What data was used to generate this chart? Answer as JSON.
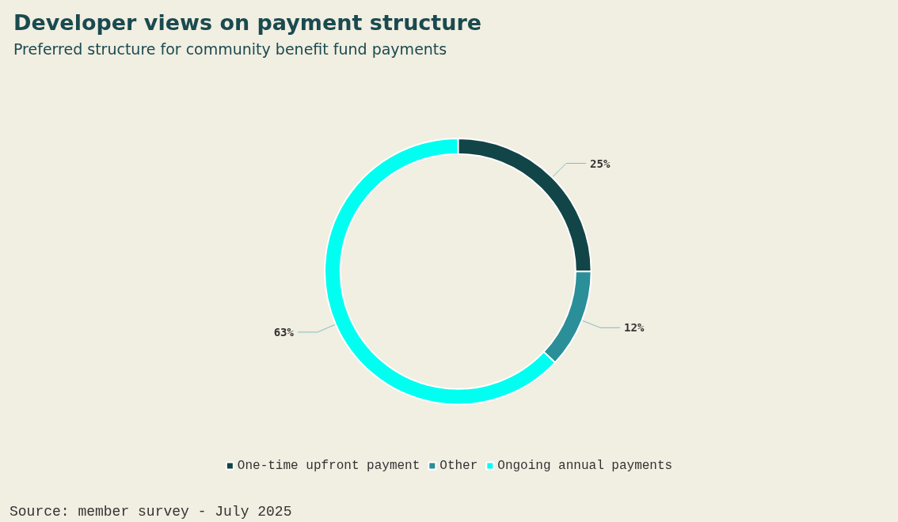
{
  "chart_data": {
    "type": "donut",
    "title": "Developer views on payment structure",
    "subtitle": "Preferred structure for community benefit fund payments",
    "categories": [
      "One-time upfront payment",
      "Other",
      "Ongoing annual payments"
    ],
    "values": [
      25,
      12,
      63
    ],
    "colors": [
      "#124548",
      "#2a8f98",
      "#00fff0"
    ],
    "value_labels": [
      "25%",
      "12%",
      "63%"
    ],
    "legend": "bottom",
    "annotations": [
      "Source: member survey - July 2025"
    ]
  }
}
